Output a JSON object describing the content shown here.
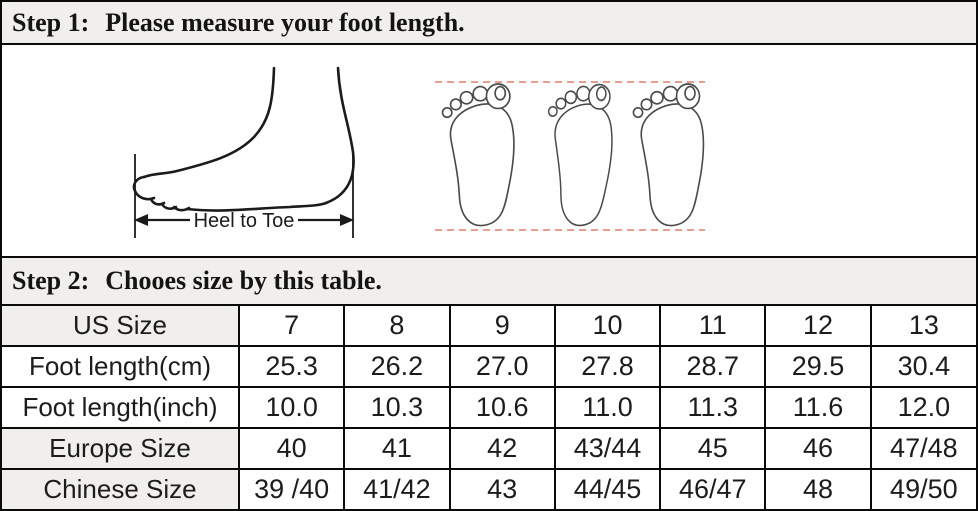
{
  "step1": {
    "prefix": "Step 1:",
    "title": "Please measure your foot length."
  },
  "step2": {
    "prefix": "Step 2:",
    "title": "Chooes size by this table."
  },
  "illustration": {
    "heel_to_toe": "Heel to Toe"
  },
  "size_table": {
    "rows": [
      {
        "label": "US Size",
        "label_shaded": true,
        "values": [
          "7",
          "8",
          "9",
          "10",
          "11",
          "12",
          "13"
        ]
      },
      {
        "label": "Foot length(cm)",
        "label_shaded": false,
        "values": [
          "25.3",
          "26.2",
          "27.0",
          "27.8",
          "28.7",
          "29.5",
          "30.4"
        ]
      },
      {
        "label": "Foot length(inch)",
        "label_shaded": false,
        "values": [
          "10.0",
          "10.3",
          "10.6",
          "11.0",
          "11.3",
          "11.6",
          "12.0"
        ]
      },
      {
        "label": "Europe Size",
        "label_shaded": true,
        "values": [
          "40",
          "41",
          "42",
          "43/44",
          "45",
          "46",
          "47/48"
        ]
      },
      {
        "label": "Chinese Size",
        "label_shaded": true,
        "values": [
          "39 /40",
          "41/42",
          "43",
          "44/45",
          "46/47",
          "48",
          "49/50"
        ]
      }
    ]
  },
  "colors": {
    "band_bg": "#f0efec",
    "grid": "#0a0a0a",
    "dashed_line": "#dd7f68",
    "drawing_stroke": "#1b1b1b",
    "footprint_stroke": "#4a4a4a"
  }
}
